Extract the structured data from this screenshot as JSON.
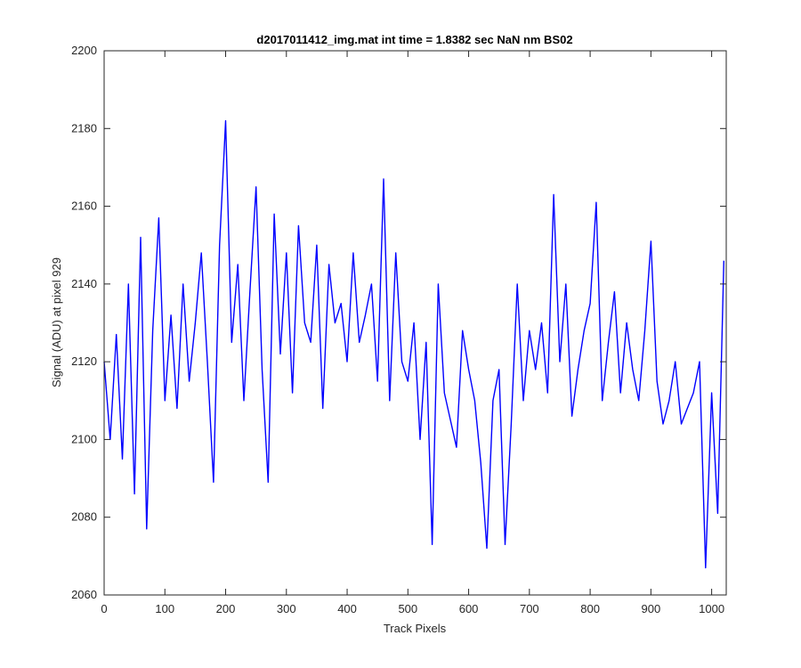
{
  "chart_data": {
    "type": "line",
    "title": "d2017011412_img.mat int time = 1.8382 sec  NaN nm BS02",
    "xlabel": "Track Pixels",
    "ylabel": "Signal (ADU) at pixel 929",
    "xlim": [
      0,
      1024
    ],
    "ylim": [
      2060,
      2200
    ],
    "xticks": [
      0,
      100,
      200,
      300,
      400,
      500,
      600,
      700,
      800,
      900,
      1000
    ],
    "yticks": [
      2060,
      2080,
      2100,
      2120,
      2140,
      2160,
      2180,
      2200
    ],
    "grid": false,
    "series": [
      {
        "color": "#0000ff",
        "x": [
          0,
          10,
          20,
          30,
          40,
          50,
          60,
          70,
          80,
          90,
          100,
          110,
          120,
          130,
          140,
          150,
          160,
          170,
          180,
          190,
          200,
          210,
          220,
          230,
          240,
          250,
          260,
          270,
          280,
          290,
          300,
          310,
          320,
          330,
          340,
          350,
          360,
          370,
          380,
          390,
          400,
          410,
          420,
          430,
          440,
          450,
          460,
          470,
          480,
          490,
          500,
          510,
          520,
          530,
          540,
          550,
          560,
          570,
          580,
          590,
          600,
          610,
          620,
          630,
          640,
          650,
          660,
          670,
          680,
          690,
          700,
          710,
          720,
          730,
          740,
          750,
          760,
          770,
          780,
          790,
          800,
          810,
          820,
          830,
          840,
          850,
          860,
          870,
          880,
          890,
          900,
          910,
          920,
          930,
          940,
          950,
          960,
          970,
          980,
          990,
          1000,
          1010,
          1020
        ],
        "y": [
          2120,
          2100,
          2127,
          2095,
          2140,
          2086,
          2152,
          2077,
          2128,
          2157,
          2110,
          2132,
          2108,
          2140,
          2115,
          2130,
          2148,
          2120,
          2089,
          2150,
          2182,
          2125,
          2145,
          2110,
          2138,
          2165,
          2118,
          2089,
          2158,
          2122,
          2148,
          2112,
          2155,
          2130,
          2125,
          2150,
          2108,
          2145,
          2130,
          2135,
          2120,
          2148,
          2125,
          2132,
          2140,
          2115,
          2167,
          2110,
          2148,
          2120,
          2115,
          2130,
          2100,
          2125,
          2073,
          2140,
          2112,
          2105,
          2098,
          2128,
          2118,
          2110,
          2094,
          2072,
          2110,
          2118,
          2073,
          2104,
          2140,
          2110,
          2128,
          2118,
          2130,
          2112,
          2163,
          2120,
          2140,
          2106,
          2118,
          2128,
          2135,
          2161,
          2110,
          2125,
          2138,
          2112,
          2130,
          2118,
          2110,
          2128,
          2151,
          2115,
          2104,
          2110,
          2120,
          2104,
          2108,
          2112,
          2120,
          2067,
          2112,
          2081,
          2146
        ]
      }
    ]
  }
}
